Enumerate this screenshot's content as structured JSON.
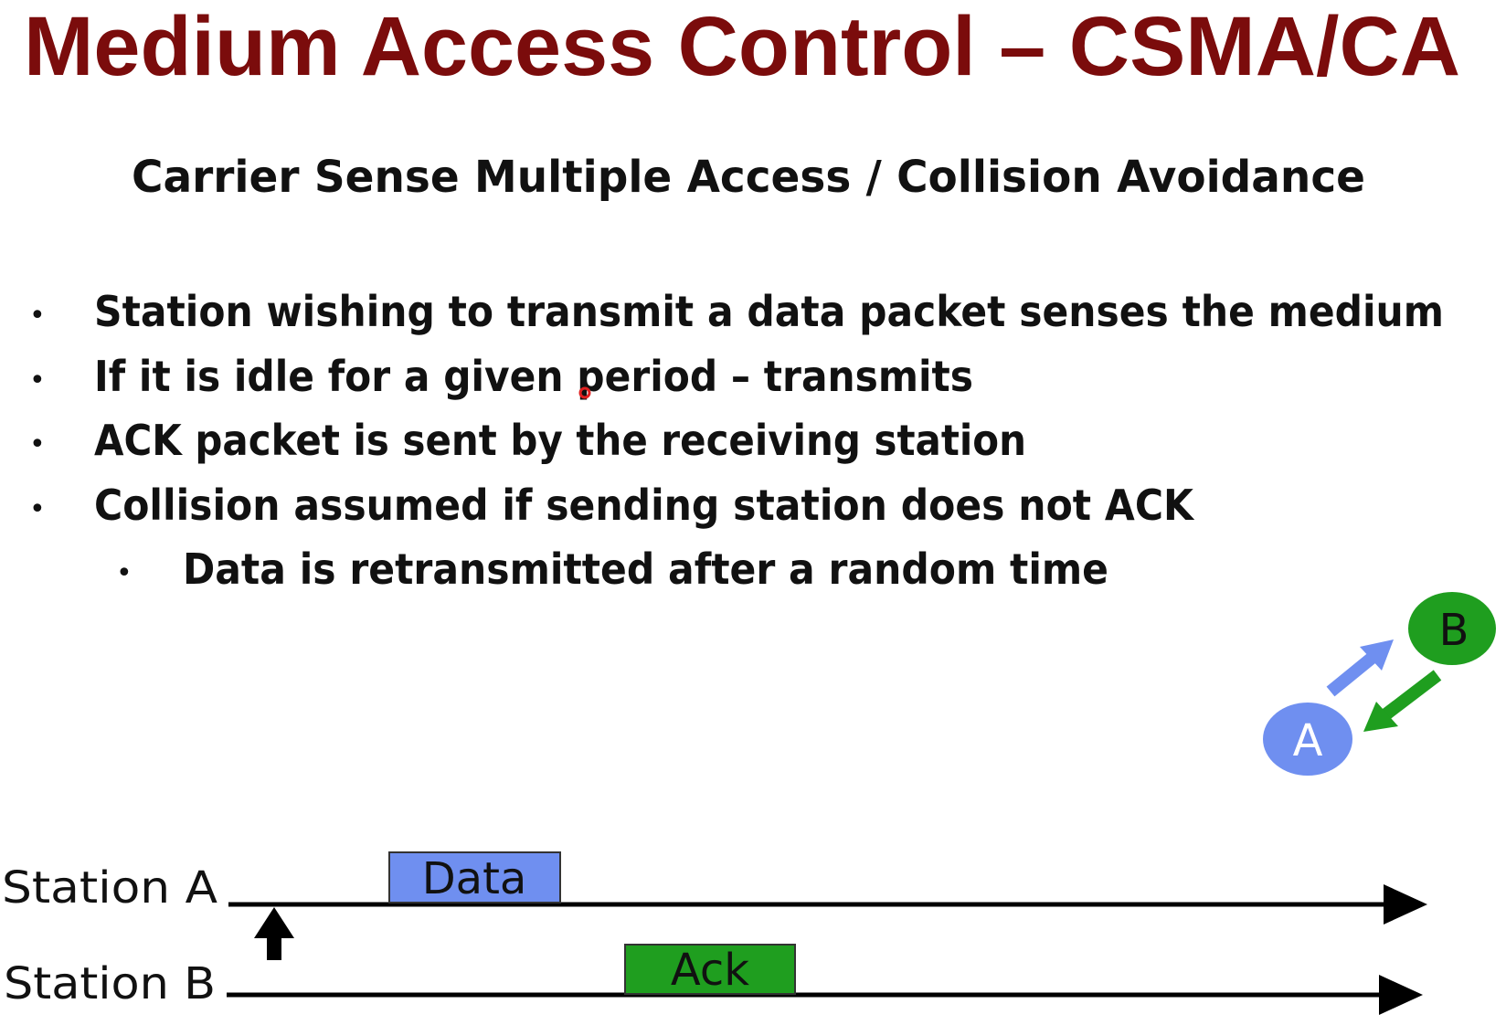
{
  "slide": {
    "title": "Medium Access Control – CSMA/CA",
    "subtitle": "Carrier Sense Multiple Access / Collision Avoidance",
    "bullets": [
      "Station wishing to transmit a data packet senses the medium",
      "If it is idle for a given period – transmits",
      "ACK packet is sent by the receiving station",
      "Collision assumed if sending station does not ACK"
    ],
    "sub_bullets": [
      "Data is retransmitted after a random time"
    ],
    "nodes": [
      {
        "label": "A"
      },
      {
        "label": "B"
      }
    ],
    "timeline": {
      "stations": [
        "Station A",
        "Station B"
      ],
      "frames": [
        "Data",
        "Ack"
      ]
    }
  }
}
